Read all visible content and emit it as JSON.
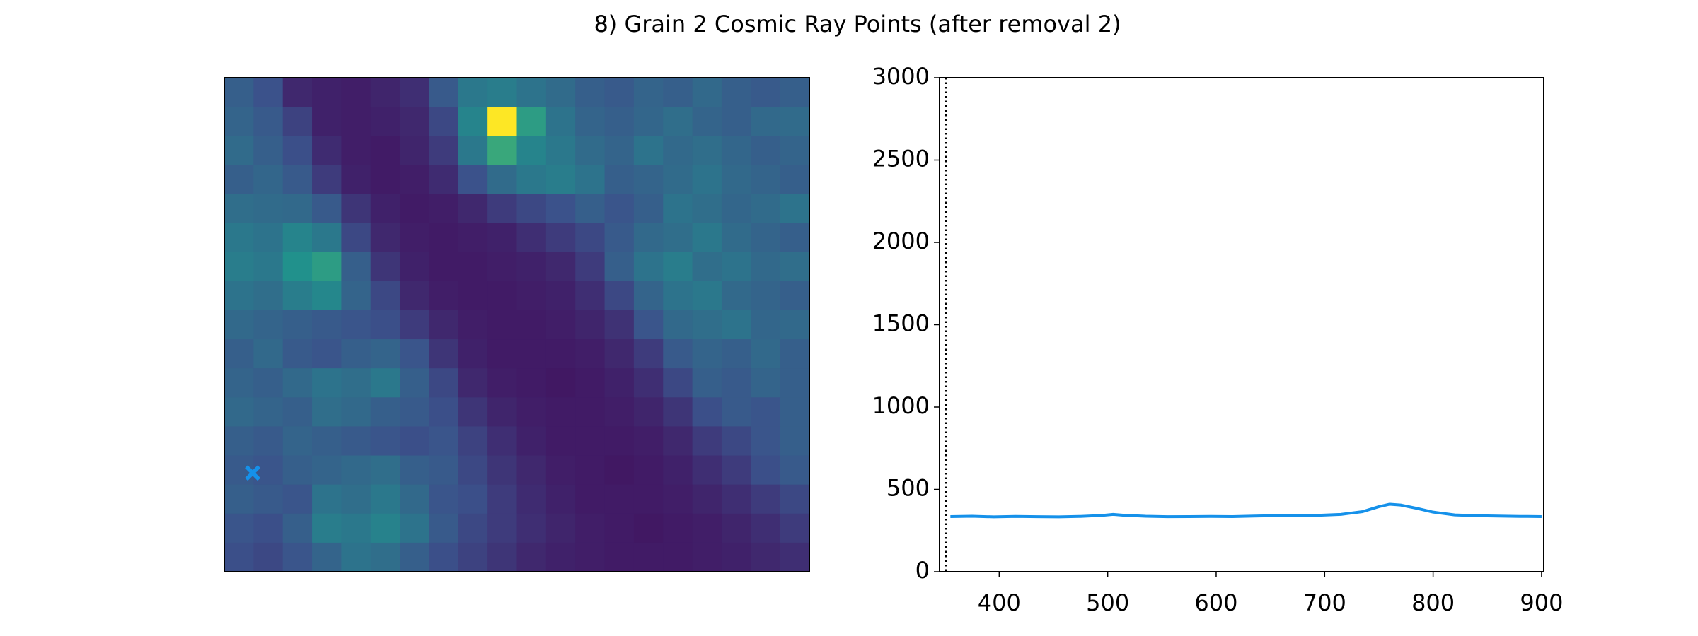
{
  "title": "8) Grain 2 Cosmic Ray Points (after removal 2)",
  "chart_data": [
    {
      "type": "heatmap",
      "colormap": "viridis",
      "zlim": [
        0,
        100
      ],
      "z": [
        [
          30,
          25,
          12,
          10,
          9,
          11,
          14,
          28,
          40,
          42,
          38,
          35,
          30,
          28,
          32,
          30,
          34,
          30,
          28,
          30
        ],
        [
          32,
          28,
          20,
          10,
          9,
          10,
          12,
          22,
          45,
          100,
          55,
          38,
          32,
          30,
          33,
          36,
          32,
          30,
          34,
          35
        ],
        [
          35,
          30,
          24,
          13,
          9,
          8,
          11,
          18,
          40,
          60,
          45,
          40,
          35,
          32,
          38,
          34,
          36,
          33,
          30,
          32
        ],
        [
          30,
          33,
          28,
          18,
          10,
          8,
          9,
          13,
          25,
          35,
          40,
          42,
          38,
          30,
          32,
          35,
          38,
          34,
          32,
          30
        ],
        [
          36,
          35,
          34,
          28,
          16,
          10,
          8,
          9,
          12,
          18,
          22,
          25,
          30,
          26,
          30,
          38,
          36,
          33,
          35,
          38
        ],
        [
          40,
          38,
          45,
          40,
          22,
          12,
          9,
          8,
          9,
          10,
          14,
          18,
          22,
          28,
          34,
          36,
          40,
          35,
          32,
          30
        ],
        [
          42,
          40,
          50,
          55,
          30,
          16,
          10,
          8,
          8,
          9,
          10,
          12,
          18,
          30,
          38,
          42,
          36,
          38,
          34,
          36
        ],
        [
          38,
          36,
          42,
          46,
          32,
          22,
          12,
          9,
          8,
          8,
          9,
          10,
          14,
          22,
          32,
          38,
          40,
          34,
          32,
          30
        ],
        [
          34,
          32,
          30,
          28,
          26,
          24,
          18,
          12,
          9,
          8,
          8,
          9,
          11,
          15,
          26,
          34,
          36,
          38,
          33,
          34
        ],
        [
          30,
          34,
          28,
          26,
          30,
          32,
          26,
          16,
          10,
          8,
          8,
          8,
          9,
          12,
          18,
          28,
          32,
          30,
          34,
          30
        ],
        [
          32,
          30,
          34,
          38,
          36,
          40,
          30,
          22,
          12,
          9,
          8,
          7,
          8,
          10,
          14,
          22,
          30,
          28,
          32,
          30
        ],
        [
          34,
          32,
          30,
          36,
          34,
          30,
          28,
          24,
          16,
          11,
          9,
          8,
          8,
          9,
          11,
          16,
          24,
          28,
          26,
          30
        ],
        [
          30,
          28,
          32,
          30,
          28,
          26,
          24,
          26,
          20,
          14,
          10,
          8,
          8,
          8,
          9,
          12,
          18,
          22,
          26,
          30
        ],
        [
          28,
          26,
          30,
          32,
          34,
          36,
          30,
          28,
          22,
          16,
          12,
          9,
          8,
          7,
          8,
          10,
          14,
          18,
          24,
          28
        ],
        [
          30,
          28,
          26,
          38,
          36,
          40,
          34,
          26,
          24,
          18,
          13,
          10,
          8,
          8,
          8,
          9,
          11,
          14,
          18,
          22
        ],
        [
          26,
          24,
          30,
          42,
          40,
          44,
          38,
          28,
          22,
          18,
          14,
          11,
          9,
          8,
          7,
          8,
          9,
          11,
          14,
          18
        ],
        [
          24,
          22,
          26,
          32,
          38,
          36,
          30,
          24,
          20,
          16,
          12,
          10,
          9,
          8,
          8,
          8,
          9,
          10,
          12,
          14
        ]
      ],
      "marker": {
        "x": 0.97,
        "y": 13.6,
        "color": "#1591ea"
      }
    },
    {
      "type": "line",
      "x": [
        355,
        375,
        395,
        415,
        435,
        455,
        475,
        495,
        505,
        515,
        535,
        555,
        575,
        595,
        615,
        635,
        655,
        675,
        695,
        715,
        735,
        750,
        760,
        770,
        785,
        800,
        820,
        840,
        860,
        880,
        900
      ],
      "series": [
        {
          "color": "#1591ea",
          "values": [
            335,
            337,
            333,
            336,
            334,
            333,
            336,
            342,
            348,
            343,
            337,
            334,
            335,
            336,
            335,
            338,
            340,
            342,
            343,
            348,
            365,
            395,
            410,
            405,
            385,
            362,
            345,
            340,
            338,
            336,
            335
          ]
        }
      ],
      "xlim": [
        345,
        902
      ],
      "ylim": [
        0,
        3000
      ],
      "xticks": [
        400,
        500,
        600,
        700,
        800,
        900
      ],
      "yticks": [
        0,
        500,
        1000,
        1500,
        2000,
        2500,
        3000
      ],
      "vline": 351
    }
  ]
}
